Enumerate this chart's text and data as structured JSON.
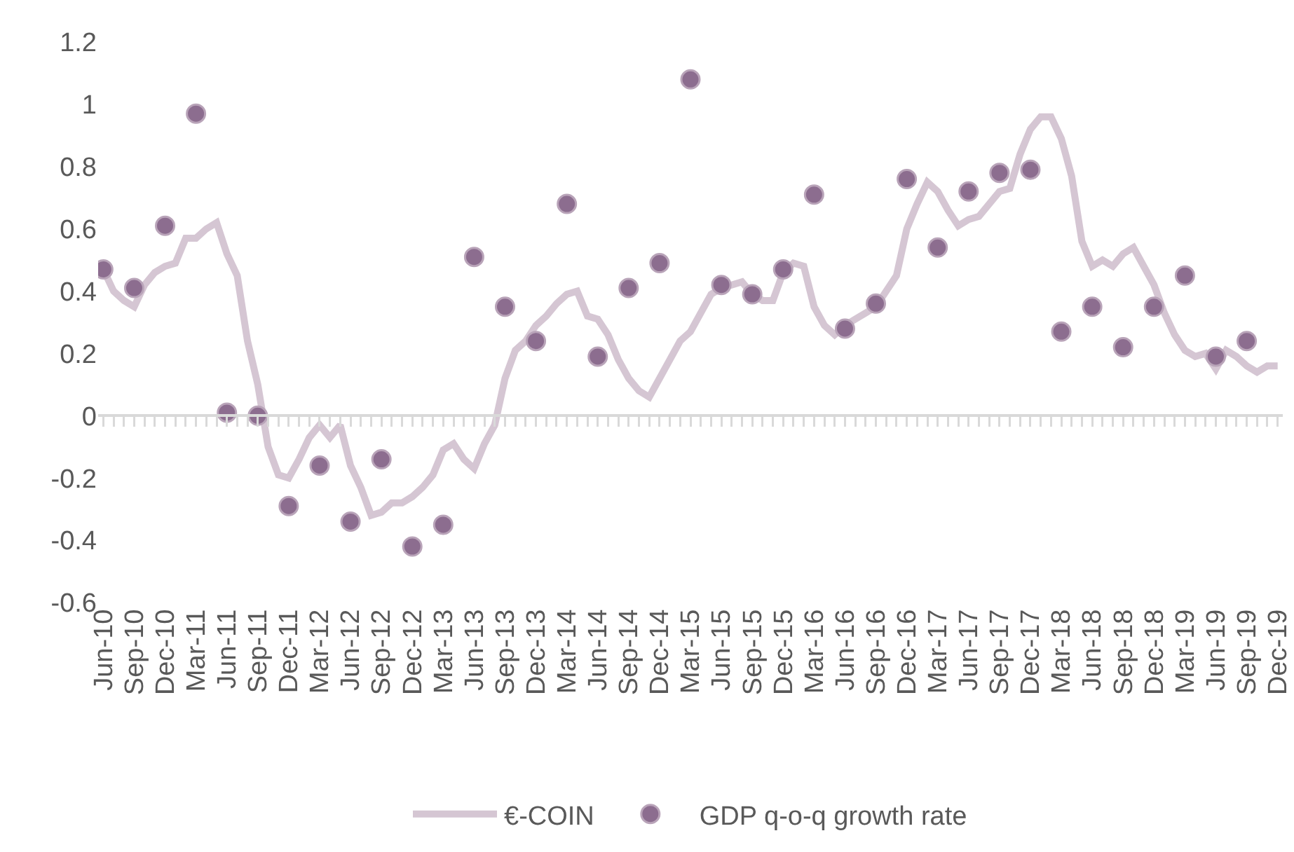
{
  "chart_data": {
    "type": "line",
    "categories": [
      "Jun-10",
      null,
      null,
      "Sep-10",
      null,
      null,
      "Dec-10",
      null,
      null,
      "Mar-11",
      null,
      null,
      "Jun-11",
      null,
      null,
      "Sep-11",
      null,
      null,
      "Dec-11",
      null,
      null,
      "Mar-12",
      null,
      null,
      "Jun-12",
      null,
      null,
      "Sep-12",
      null,
      null,
      "Dec-12",
      null,
      null,
      "Mar-13",
      null,
      null,
      "Jun-13",
      null,
      null,
      "Sep-13",
      null,
      null,
      "Dec-13",
      null,
      null,
      "Mar-14",
      null,
      null,
      "Jun-14",
      null,
      null,
      "Sep-14",
      null,
      null,
      "Dec-14",
      null,
      null,
      "Mar-15",
      null,
      null,
      "Jun-15",
      null,
      null,
      "Sep-15",
      null,
      null,
      "Dec-15",
      null,
      null,
      "Mar-16",
      null,
      null,
      "Jun-16",
      null,
      null,
      "Sep-16",
      null,
      null,
      "Dec-16",
      null,
      null,
      "Mar-17",
      null,
      null,
      "Jun-17",
      null,
      null,
      "Sep-17",
      null,
      null,
      "Dec-17",
      null,
      null,
      "Mar-18",
      null,
      null,
      "Jun-18",
      null,
      null,
      "Sep-18",
      null,
      null,
      "Dec-18",
      null,
      null,
      "Mar-19",
      null,
      null,
      "Jun-19",
      null,
      null,
      "Sep-19",
      null,
      null,
      "Dec-19"
    ],
    "series": [
      {
        "name": "€-COIN",
        "color": "#d5c6d3",
        "values": [
          0.47,
          0.4,
          0.37,
          0.35,
          0.42,
          0.46,
          0.48,
          0.49,
          0.57,
          0.57,
          0.6,
          0.62,
          0.52,
          0.45,
          0.24,
          0.1,
          -0.1,
          -0.19,
          -0.2,
          -0.14,
          -0.07,
          -0.03,
          -0.07,
          -0.03,
          -0.16,
          -0.23,
          -0.32,
          -0.31,
          -0.28,
          -0.28,
          -0.26,
          -0.23,
          -0.19,
          -0.11,
          -0.09,
          -0.14,
          -0.17,
          -0.09,
          -0.03,
          0.12,
          0.21,
          0.24,
          0.29,
          0.32,
          0.36,
          0.39,
          0.4,
          0.32,
          0.31,
          0.26,
          0.18,
          0.12,
          0.08,
          0.06,
          0.12,
          0.18,
          0.24,
          0.27,
          0.33,
          0.39,
          0.41,
          0.42,
          0.43,
          0.39,
          0.37,
          0.37,
          0.46,
          0.49,
          0.48,
          0.35,
          0.29,
          0.26,
          0.29,
          0.31,
          0.33,
          0.35,
          0.4,
          0.45,
          0.6,
          0.68,
          0.75,
          0.72,
          0.66,
          0.61,
          0.63,
          0.64,
          0.68,
          0.72,
          0.73,
          0.84,
          0.92,
          0.96,
          0.96,
          0.89,
          0.77,
          0.56,
          0.48,
          0.5,
          0.48,
          0.52,
          0.54,
          0.48,
          0.42,
          0.33,
          0.26,
          0.21,
          0.19,
          0.2,
          0.15,
          0.21,
          0.19,
          0.16,
          0.14,
          0.16,
          0.16
        ]
      },
      {
        "name": "GDP q-o-q growth rate",
        "type": "scatter",
        "marker": "circle",
        "color": "#8c6d8f",
        "values": [
          0.47,
          null,
          null,
          0.41,
          null,
          null,
          0.61,
          null,
          null,
          0.97,
          null,
          null,
          0.01,
          null,
          null,
          0.0,
          null,
          null,
          -0.29,
          null,
          null,
          -0.16,
          null,
          null,
          -0.34,
          null,
          null,
          -0.14,
          null,
          null,
          -0.42,
          null,
          null,
          -0.35,
          null,
          null,
          0.51,
          null,
          null,
          0.35,
          null,
          null,
          0.24,
          null,
          null,
          0.68,
          null,
          null,
          0.19,
          null,
          null,
          0.41,
          null,
          null,
          0.49,
          null,
          null,
          1.08,
          null,
          null,
          0.42,
          null,
          null,
          0.39,
          null,
          null,
          0.47,
          null,
          null,
          0.71,
          null,
          null,
          0.28,
          null,
          null,
          0.36,
          null,
          null,
          0.76,
          null,
          null,
          0.54,
          null,
          null,
          0.72,
          null,
          null,
          0.78,
          null,
          null,
          0.79,
          null,
          null,
          0.27,
          null,
          null,
          0.35,
          null,
          null,
          0.22,
          null,
          null,
          0.35,
          null,
          null,
          0.45,
          null,
          null,
          0.19,
          null,
          null,
          0.24,
          null,
          null,
          null
        ]
      }
    ],
    "ylim": [
      -0.6,
      1.2
    ],
    "yticks": [
      -0.6,
      -0.4,
      -0.2,
      0,
      0.2,
      0.4,
      0.6,
      0.8,
      1,
      1.2
    ],
    "legend": "bottom"
  }
}
